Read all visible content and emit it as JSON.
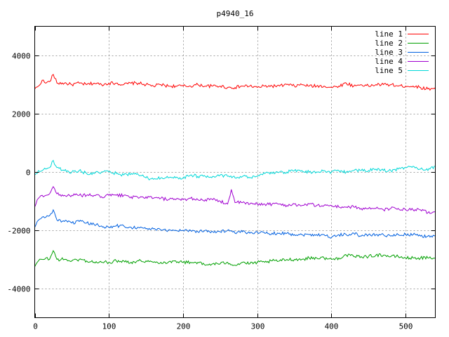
{
  "chart_data": {
    "type": "line",
    "title": "p4940_16",
    "xlabel": "",
    "ylabel": "",
    "xlim": [
      0,
      540
    ],
    "ylim": [
      -5000,
      5000
    ],
    "xticks": [
      0,
      100,
      200,
      300,
      400,
      500
    ],
    "yticks": [
      -4000,
      -2000,
      0,
      2000,
      4000
    ],
    "xtick_labels": [
      "0",
      "100",
      "200",
      "300",
      "400",
      "500"
    ],
    "ytick_labels": [
      "-4000",
      "-2000",
      "0",
      "2000",
      "4000"
    ],
    "grid": true,
    "legend_position": "top-right",
    "series": [
      {
        "name": "line 1",
        "color": "#ff0000",
        "x": [
          0,
          5,
          10,
          15,
          20,
          25,
          30,
          40,
          50,
          60,
          70,
          80,
          90,
          100,
          110,
          120,
          130,
          140,
          150,
          160,
          170,
          180,
          190,
          200,
          210,
          220,
          230,
          240,
          250,
          260,
          270,
          280,
          290,
          300,
          310,
          320,
          330,
          340,
          350,
          360,
          370,
          380,
          390,
          400,
          410,
          420,
          430,
          440,
          450,
          460,
          470,
          480,
          490,
          500,
          510,
          520,
          530,
          540
        ],
        "y": [
          2850,
          2950,
          3150,
          3050,
          3100,
          3350,
          3050,
          3050,
          3000,
          3050,
          3000,
          3050,
          3000,
          3050,
          3050,
          3000,
          3050,
          3050,
          3000,
          2950,
          3000,
          2950,
          2950,
          2950,
          2950,
          3000,
          2950,
          2950,
          2950,
          2900,
          2900,
          2950,
          2950,
          2900,
          2950,
          2950,
          2950,
          3000,
          2950,
          3000,
          2950,
          2950,
          2950,
          2900,
          2950,
          3050,
          2950,
          3000,
          2950,
          3000,
          3000,
          3000,
          2950,
          2950,
          2950,
          2900,
          2850,
          2900
        ]
      },
      {
        "name": "line 2",
        "color": "#00a000",
        "x": [
          0,
          5,
          10,
          15,
          20,
          25,
          30,
          40,
          50,
          60,
          70,
          80,
          90,
          100,
          110,
          120,
          130,
          140,
          150,
          160,
          170,
          180,
          190,
          200,
          210,
          220,
          230,
          240,
          250,
          260,
          270,
          280,
          290,
          300,
          310,
          320,
          330,
          340,
          350,
          360,
          370,
          380,
          390,
          400,
          410,
          420,
          430,
          440,
          450,
          460,
          470,
          480,
          490,
          500,
          510,
          520,
          530,
          540
        ],
        "y": [
          -3250,
          -3050,
          -3000,
          -2950,
          -3000,
          -2700,
          -3000,
          -3000,
          -3050,
          -3000,
          -3050,
          -3100,
          -3100,
          -3100,
          -3050,
          -3050,
          -3100,
          -3050,
          -3050,
          -3100,
          -3100,
          -3100,
          -3050,
          -3100,
          -3100,
          -3100,
          -3200,
          -3150,
          -3150,
          -3100,
          -3200,
          -3100,
          -3150,
          -3100,
          -3100,
          -3050,
          -3050,
          -3000,
          -3000,
          -3000,
          -2950,
          -2950,
          -2950,
          -3000,
          -2950,
          -2850,
          -2900,
          -2900,
          -2900,
          -2850,
          -2850,
          -2900,
          -2900,
          -2950,
          -2950,
          -2950,
          -2950,
          -2950
        ]
      },
      {
        "name": "line 3",
        "color": "#0060e0",
        "x": [
          0,
          5,
          10,
          15,
          20,
          25,
          30,
          40,
          50,
          60,
          70,
          80,
          90,
          100,
          110,
          120,
          130,
          140,
          150,
          160,
          170,
          180,
          190,
          200,
          210,
          220,
          230,
          240,
          250,
          260,
          270,
          280,
          290,
          300,
          310,
          320,
          330,
          340,
          350,
          360,
          370,
          380,
          390,
          400,
          410,
          420,
          430,
          440,
          450,
          460,
          470,
          480,
          490,
          500,
          510,
          520,
          530,
          540
        ],
        "y": [
          -1900,
          -1650,
          -1550,
          -1550,
          -1500,
          -1300,
          -1650,
          -1700,
          -1750,
          -1700,
          -1750,
          -1800,
          -1850,
          -1900,
          -1850,
          -1850,
          -1900,
          -1900,
          -1950,
          -1950,
          -2000,
          -2000,
          -2000,
          -2000,
          -2000,
          -2050,
          -2000,
          -2050,
          -2050,
          -2000,
          -2100,
          -2050,
          -2100,
          -2050,
          -2100,
          -2100,
          -2100,
          -2100,
          -2150,
          -2150,
          -2150,
          -2150,
          -2150,
          -2250,
          -2150,
          -2150,
          -2100,
          -2200,
          -2150,
          -2150,
          -2150,
          -2200,
          -2150,
          -2150,
          -2150,
          -2200,
          -2200,
          -2200
        ]
      },
      {
        "name": "line 4",
        "color": "#a000d0",
        "x": [
          0,
          5,
          10,
          15,
          20,
          25,
          30,
          40,
          50,
          60,
          70,
          80,
          90,
          100,
          110,
          120,
          130,
          140,
          150,
          160,
          170,
          180,
          190,
          200,
          210,
          220,
          230,
          240,
          250,
          260,
          265,
          270,
          280,
          290,
          300,
          310,
          320,
          330,
          340,
          350,
          360,
          370,
          380,
          390,
          400,
          410,
          420,
          430,
          440,
          450,
          460,
          470,
          480,
          490,
          500,
          510,
          520,
          530,
          540
        ],
        "y": [
          -1200,
          -900,
          -800,
          -800,
          -750,
          -500,
          -750,
          -800,
          -800,
          -800,
          -800,
          -800,
          -850,
          -800,
          -800,
          -800,
          -850,
          -900,
          -850,
          -900,
          -900,
          -950,
          -950,
          -950,
          -900,
          -950,
          -950,
          -950,
          -1000,
          -1100,
          -600,
          -1050,
          -1050,
          -1100,
          -1100,
          -1100,
          -1100,
          -1100,
          -1150,
          -1100,
          -1150,
          -1100,
          -1150,
          -1150,
          -1150,
          -1200,
          -1200,
          -1200,
          -1250,
          -1250,
          -1250,
          -1300,
          -1250,
          -1250,
          -1300,
          -1300,
          -1300,
          -1400,
          -1350
        ]
      },
      {
        "name": "line 5",
        "color": "#00d8d8",
        "x": [
          0,
          5,
          10,
          15,
          20,
          25,
          30,
          40,
          50,
          60,
          70,
          80,
          90,
          100,
          110,
          120,
          130,
          140,
          150,
          160,
          170,
          180,
          190,
          200,
          210,
          220,
          230,
          240,
          250,
          260,
          270,
          280,
          290,
          300,
          310,
          320,
          330,
          340,
          350,
          360,
          370,
          380,
          390,
          400,
          410,
          420,
          430,
          440,
          450,
          460,
          470,
          480,
          490,
          500,
          510,
          520,
          530,
          540
        ],
        "y": [
          -100,
          50,
          50,
          100,
          150,
          400,
          150,
          50,
          0,
          50,
          -50,
          -50,
          0,
          0,
          -50,
          -100,
          -50,
          -100,
          -200,
          -250,
          -200,
          -200,
          -200,
          -200,
          -100,
          -150,
          -150,
          -150,
          -100,
          -150,
          -200,
          -150,
          -200,
          -150,
          -50,
          -50,
          0,
          0,
          50,
          50,
          0,
          0,
          50,
          0,
          50,
          0,
          50,
          50,
          50,
          100,
          50,
          50,
          100,
          150,
          200,
          100,
          50,
          200
        ]
      }
    ]
  }
}
